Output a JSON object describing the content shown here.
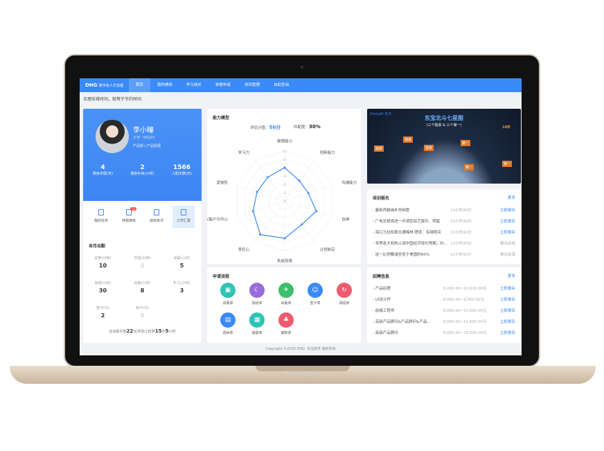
{
  "device": {
    "brand": "Macbook"
  },
  "nav": {
    "logo": "DHG",
    "logo_sub": "数字化人才治理",
    "items": [
      "首页",
      "我的绩效",
      "学习成长",
      "单据申请",
      "协同管理",
      "自助查询"
    ],
    "active": 0
  },
  "subheader": "合理安排时间，就等于节约时间",
  "profile": {
    "name": "李小瞳",
    "id": "工号：00123",
    "dept": "产品部 | 产品经理",
    "stats": [
      {
        "value": "4",
        "label": "剩余年假(天)"
      },
      {
        "value": "2",
        "label": "剩余补休(小时)"
      },
      {
        "value": "1566",
        "label": "入职天数(天)"
      }
    ]
  },
  "quick": [
    {
      "label": "我的任务"
    },
    {
      "label": "待我审核",
      "badge": "10"
    },
    {
      "label": "绩效考评"
    },
    {
      "label": "工作汇报",
      "active": true
    }
  ],
  "attendance": {
    "title": "本月出勤",
    "items": [
      {
        "label": "迟到(分钟)",
        "value": "10"
      },
      {
        "label": "早退(分钟)",
        "value": "0"
      },
      {
        "label": "请假(小时)",
        "value": "5"
      },
      {
        "label": "加班(小时)",
        "value": "30"
      },
      {
        "label": "出差(小时)",
        "value": "8"
      },
      {
        "label": "旷工(小时)",
        "value": "3"
      },
      {
        "label": "签卡(次)",
        "value": "2"
      },
      {
        "label": "缺卡(次)",
        "value": "0"
      }
    ],
    "summary_pre": "应出勤天数",
    "summary_days": "22",
    "summary_mid": "天/实际工时数",
    "summary_work_days": "15",
    "summary_unit1": "天",
    "summary_hours": "5",
    "summary_unit2": "小时"
  },
  "ability": {
    "title": "能力模型",
    "score_label": "评估分值：",
    "score": "50分",
    "match_label": "匹配度：",
    "match": "30%"
  },
  "chart_data": {
    "type": "radar",
    "categories": [
      "管理能力",
      "创新能力",
      "沟通能力",
      "自律",
      "计划制定",
      "系统思维",
      "责任心",
      "以客户为中心",
      "坚韧性",
      "学习力"
    ],
    "values": [
      8,
      6,
      6,
      8,
      7,
      9,
      10,
      8,
      7,
      7
    ],
    "rlim": [
      0,
      12
    ],
    "ticks": [
      "0",
      "2",
      "4",
      "6",
      "8",
      "10",
      "12"
    ],
    "color": "#3a8af7"
  },
  "apply": {
    "title": "申请流程",
    "items": [
      {
        "label": "请假单",
        "color": "#2ec4b6",
        "icon": "▣"
      },
      {
        "label": "加班单",
        "color": "#9b6bdb",
        "icon": "☾"
      },
      {
        "label": "出差单",
        "color": "#3cc06b",
        "icon": "✈"
      },
      {
        "label": "签卡单",
        "color": "#3a8af7",
        "icon": "☺"
      },
      {
        "label": "调班单",
        "color": "#ef5a6f",
        "icon": "↻"
      },
      {
        "label": "调休单",
        "color": "#3a8af7",
        "icon": "▤"
      },
      {
        "label": "销假单",
        "color": "#2ec4b6",
        "icon": "▦"
      },
      {
        "label": "离职单",
        "color": "#ef5a6f",
        "icon": "♣"
      }
    ]
  },
  "banner": {
    "logo": "Dorisoft 东方",
    "title": "东宝北斗七星图",
    "subtitle": "(三个独家 & 三个第一)",
    "tags": [
      "独家",
      "独家",
      "独家",
      "第一",
      "第一",
      "第一",
      "18年"
    ]
  },
  "training": {
    "title": "培训报名",
    "more": "更多",
    "items": [
      {
        "title": "鉴新西格纳补充制度",
        "time": "12小时30分",
        "action": "立即报名",
        "open": true
      },
      {
        "title": "广电总局将进一步调控综艺娱乐、明星",
        "time": "12小时30分",
        "action": "立即报名",
        "open": true
      },
      {
        "title": "海口马拉松致交通梅林 理发：有细观实",
        "time": "12小时30分",
        "action": "立即报名",
        "open": true
      },
      {
        "title": "世界各大机构上调中国经济增长预期，抖...",
        "time": "12小时30分",
        "action": "报名结束",
        "open": false
      },
      {
        "title": "这一比例要减至低于美国的60%",
        "time": "12小时30分",
        "action": "报名结束",
        "open": false
      }
    ]
  },
  "recruit": {
    "title": "招聘信息",
    "more": "更多",
    "items": [
      {
        "title": "产品经理",
        "salary": "8,000.00~10,000.00元",
        "action": "立即报名"
      },
      {
        "title": "UI设计师",
        "salary": "8,000.00~9,000.00元",
        "action": "立即报名"
      },
      {
        "title": "前端工程师",
        "salary": "8,000.00~12,000.00元",
        "action": "立即报名"
      },
      {
        "title": "高级产品顾问&产品顾问&产品...",
        "salary": "8,000.00~11,000.00元",
        "action": "立即报名"
      },
      {
        "title": "高级产品顾问",
        "salary": "8,000.00~15,000.00元",
        "action": "立即报名"
      }
    ]
  },
  "footer": "Copyright ©2020 DHG. 东宝软件 版权所有"
}
